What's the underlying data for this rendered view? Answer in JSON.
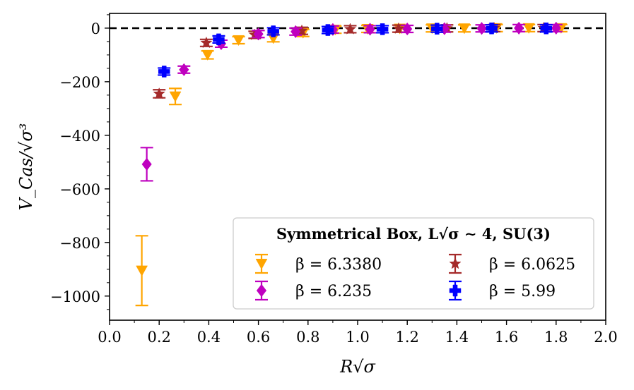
{
  "chart_data": {
    "type": "scatter",
    "xlabel": "R√σ",
    "ylabel": "V_Cas/√σ³",
    "xlim": [
      0.0,
      2.0
    ],
    "ylim": [
      -1090,
      55
    ],
    "xticks": [
      0.0,
      0.2,
      0.4,
      0.6,
      0.8,
      1.0,
      1.2,
      1.4,
      1.6,
      1.8,
      2.0
    ],
    "xtick_labels": [
      "0.0",
      "0.2",
      "0.4",
      "0.6",
      "0.8",
      "1.0",
      "1.2",
      "1.4",
      "1.6",
      "1.8",
      "2.0"
    ],
    "yticks": [
      0,
      -200,
      -400,
      -600,
      -800,
      -1000
    ],
    "ytick_labels": [
      "0",
      "−200",
      "−400",
      "−600",
      "−800",
      "−1000"
    ],
    "reference_line": {
      "y": 0,
      "style": "dashed",
      "color": "#000000"
    },
    "legend": {
      "title": "Symmetrical Box, L√σ ∼ 4, SU(3)",
      "position": "lower-right"
    },
    "series": [
      {
        "name": "β = 6.3380",
        "marker": "triangle-down",
        "color": "#ffa500",
        "points": [
          {
            "x": 0.13,
            "y": -905,
            "err": 130
          },
          {
            "x": 0.265,
            "y": -255,
            "err": 30
          },
          {
            "x": 0.395,
            "y": -100,
            "err": 15
          },
          {
            "x": 0.52,
            "y": -45,
            "err": 10
          },
          {
            "x": 0.66,
            "y": -38,
            "err": 10
          },
          {
            "x": 0.78,
            "y": -18,
            "err": 6
          },
          {
            "x": 0.91,
            "y": -6,
            "err": 4
          },
          {
            "x": 1.04,
            "y": -3,
            "err": 3
          },
          {
            "x": 1.17,
            "y": -2,
            "err": 3
          },
          {
            "x": 1.3,
            "y": -1,
            "err": 3
          },
          {
            "x": 1.43,
            "y": -1,
            "err": 3
          },
          {
            "x": 1.56,
            "y": 0,
            "err": 3
          },
          {
            "x": 1.69,
            "y": 0,
            "err": 3
          },
          {
            "x": 1.82,
            "y": 0,
            "err": 3
          }
        ]
      },
      {
        "name": "β = 6.0625",
        "marker": "star",
        "color": "#a52a2a",
        "points": [
          {
            "x": 0.2,
            "y": -245,
            "err": 15
          },
          {
            "x": 0.39,
            "y": -55,
            "err": 8
          },
          {
            "x": 0.585,
            "y": -25,
            "err": 5
          },
          {
            "x": 0.775,
            "y": -10,
            "err": 4
          },
          {
            "x": 0.97,
            "y": -4,
            "err": 3
          },
          {
            "x": 1.165,
            "y": -2,
            "err": 3
          },
          {
            "x": 1.36,
            "y": -1,
            "err": 3
          },
          {
            "x": 1.55,
            "y": 0,
            "err": 3
          },
          {
            "x": 1.75,
            "y": 0,
            "err": 3
          }
        ]
      },
      {
        "name": "β = 6.235",
        "marker": "diamond",
        "color": "#bf00bf",
        "points": [
          {
            "x": 0.15,
            "y": -508,
            "err": 62
          },
          {
            "x": 0.3,
            "y": -155,
            "err": 12
          },
          {
            "x": 0.45,
            "y": -58,
            "err": 8
          },
          {
            "x": 0.6,
            "y": -22,
            "err": 5
          },
          {
            "x": 0.75,
            "y": -13,
            "err": 4
          },
          {
            "x": 0.9,
            "y": -5,
            "err": 3
          },
          {
            "x": 1.05,
            "y": -4,
            "err": 3
          },
          {
            "x": 1.2,
            "y": -3,
            "err": 3
          },
          {
            "x": 1.35,
            "y": -2,
            "err": 3
          },
          {
            "x": 1.5,
            "y": -1,
            "err": 3
          },
          {
            "x": 1.65,
            "y": 0,
            "err": 3
          },
          {
            "x": 1.8,
            "y": 0,
            "err": 3
          }
        ]
      },
      {
        "name": "β = 5.99",
        "marker": "plus",
        "color": "#0000ff",
        "points": [
          {
            "x": 0.22,
            "y": -162,
            "err": 12
          },
          {
            "x": 0.44,
            "y": -42,
            "err": 10
          },
          {
            "x": 0.66,
            "y": -12,
            "err": 6
          },
          {
            "x": 0.88,
            "y": -7,
            "err": 4
          },
          {
            "x": 1.1,
            "y": -4,
            "err": 3
          },
          {
            "x": 1.32,
            "y": -2,
            "err": 3
          },
          {
            "x": 1.54,
            "y": -1,
            "err": 3
          },
          {
            "x": 1.76,
            "y": -1,
            "err": 3
          }
        ]
      }
    ],
    "legend_order": [
      0,
      1,
      2,
      3
    ]
  }
}
